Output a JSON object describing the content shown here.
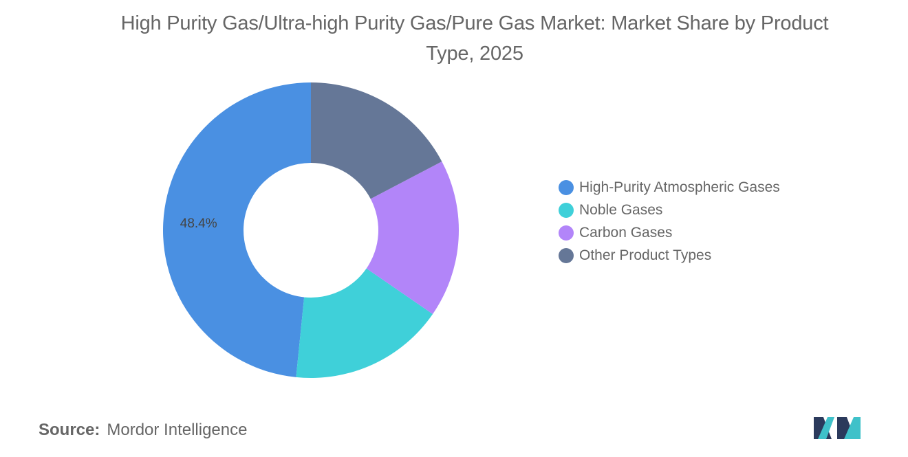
{
  "chart_data": {
    "type": "pie",
    "variant": "donut",
    "title": "High Purity Gas/Ultra-high Purity Gas/Pure Gas Market: Market Share by Product Type, 2025",
    "unit": "%",
    "series": [
      {
        "name": "High-Purity Atmospheric Gases",
        "value": 48.4,
        "label": "48.4%",
        "color": "#4a90e2"
      },
      {
        "name": "Noble Gases",
        "value": 17.0,
        "label": "",
        "color": "#3fd0d9"
      },
      {
        "name": "Carbon Gases",
        "value": 17.3,
        "label": "",
        "color": "#b285f9"
      },
      {
        "name": "Other Product Types",
        "value": 17.3,
        "label": "",
        "color": "#657797"
      }
    ],
    "legend_placement": "right"
  },
  "source": {
    "label": "Source:",
    "text": "Mordor Intelligence"
  },
  "logo": {
    "icon": "mordor-intelligence-logo",
    "colors": [
      "#2b3a5c",
      "#3fc1c9"
    ]
  }
}
